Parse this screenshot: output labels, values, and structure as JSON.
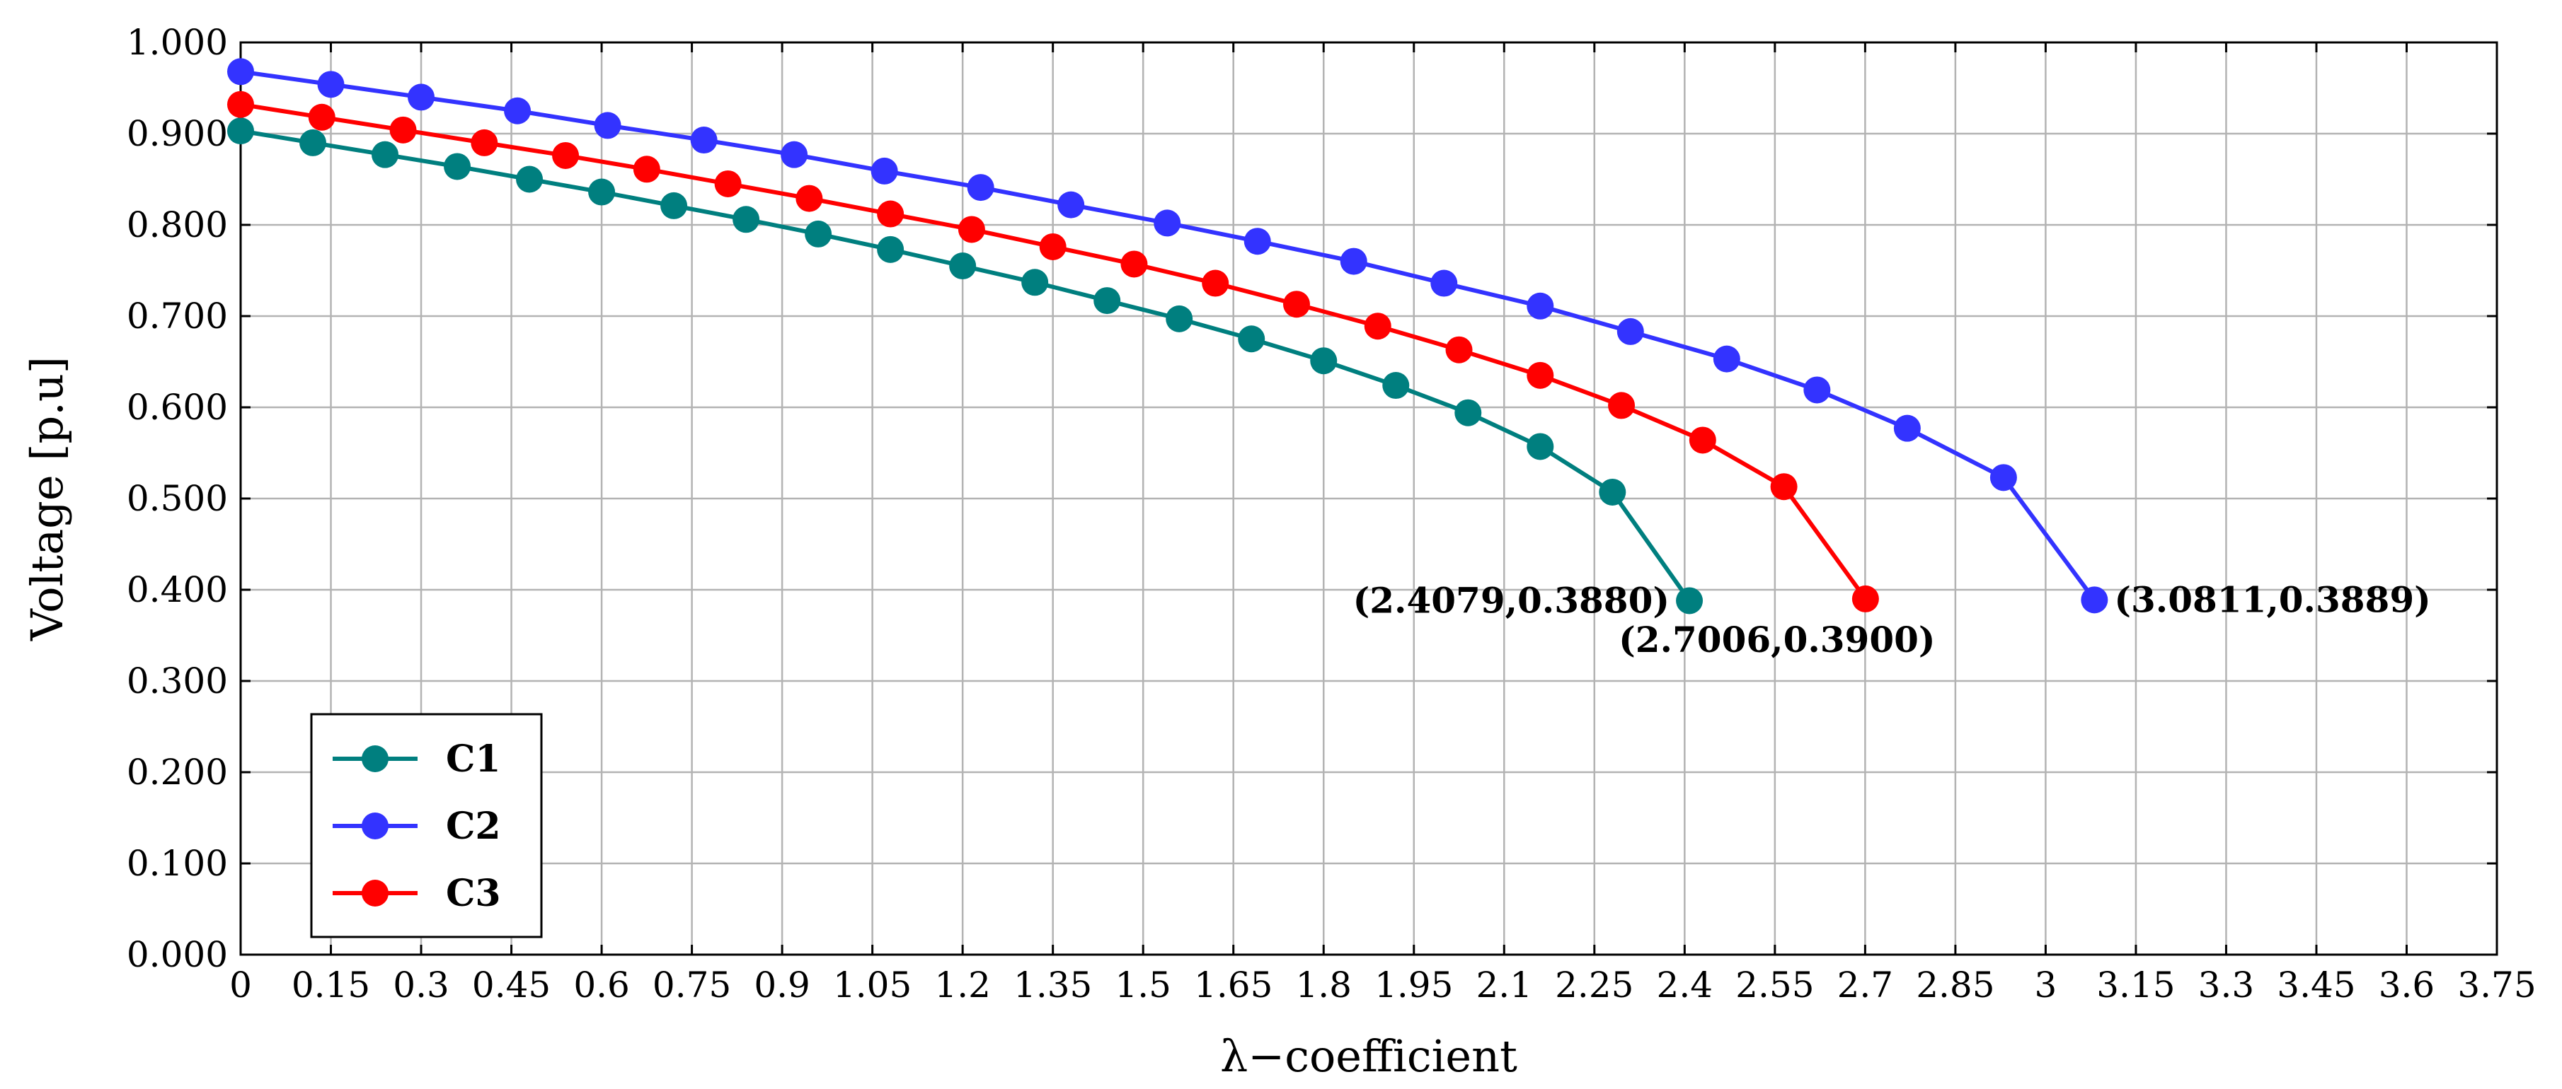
{
  "chart_data": {
    "type": "line",
    "title": "",
    "xlabel": "λ−coefficient",
    "ylabel": "Voltage [p.u]",
    "xlim": [
      0,
      3.75
    ],
    "ylim": [
      0,
      1.0
    ],
    "grid": true,
    "legend_position": "bottom-left",
    "x_ticks": [
      "0",
      "0.15",
      "0.3",
      "0.45",
      "0.6",
      "0.75",
      "0.9",
      "1.05",
      "1.2",
      "1.35",
      "1.5",
      "1.65",
      "1.8",
      "1.95",
      "2.1",
      "2.25",
      "2.4",
      "2.55",
      "2.7",
      "2.85",
      "3",
      "3.15",
      "3.3",
      "3.45",
      "3.6",
      "3.75"
    ],
    "y_ticks": [
      "0.000",
      "0.100",
      "0.200",
      "0.300",
      "0.400",
      "0.500",
      "0.600",
      "0.700",
      "0.800",
      "0.900",
      "1.000"
    ],
    "series": [
      {
        "name": "C1",
        "color": "#007f7f",
        "x": [
          0,
          0.12,
          0.24,
          0.36,
          0.48,
          0.6,
          0.72,
          0.84,
          0.96,
          1.08,
          1.2,
          1.32,
          1.44,
          1.56,
          1.68,
          1.8,
          1.92,
          2.04,
          2.16,
          2.28,
          2.4079
        ],
        "y": [
          0.903,
          0.89,
          0.877,
          0.864,
          0.85,
          0.836,
          0.821,
          0.806,
          0.79,
          0.773,
          0.755,
          0.737,
          0.717,
          0.697,
          0.675,
          0.651,
          0.624,
          0.594,
          0.557,
          0.507,
          0.388
        ]
      },
      {
        "name": "C2",
        "color": "#3333ff",
        "x": [
          0,
          0.15,
          0.3,
          0.46,
          0.61,
          0.77,
          0.92,
          1.07,
          1.23,
          1.38,
          1.54,
          1.69,
          1.85,
          2.0,
          2.16,
          2.31,
          2.47,
          2.62,
          2.77,
          2.93,
          3.0811
        ],
        "y": [
          0.968,
          0.954,
          0.94,
          0.925,
          0.909,
          0.893,
          0.877,
          0.859,
          0.841,
          0.822,
          0.802,
          0.782,
          0.76,
          0.736,
          0.711,
          0.683,
          0.653,
          0.619,
          0.577,
          0.523,
          0.3889
        ]
      },
      {
        "name": "C3",
        "color": "#ff0000",
        "x": [
          0,
          0.135,
          0.27,
          0.405,
          0.54,
          0.675,
          0.81,
          0.945,
          1.08,
          1.215,
          1.35,
          1.485,
          1.62,
          1.755,
          1.89,
          2.025,
          2.16,
          2.295,
          2.43,
          2.565,
          2.7006
        ],
        "y": [
          0.932,
          0.918,
          0.904,
          0.89,
          0.876,
          0.861,
          0.845,
          0.829,
          0.812,
          0.795,
          0.776,
          0.757,
          0.736,
          0.713,
          0.689,
          0.663,
          0.635,
          0.602,
          0.564,
          0.513,
          0.39
        ]
      }
    ],
    "annotations": [
      {
        "text": "(2.4079,0.3880)",
        "series": "C1",
        "anchor": "left"
      },
      {
        "text": "(2.7006,0.3900)",
        "series": "C3",
        "anchor": "below"
      },
      {
        "text": "(3.0811,0.3889)",
        "series": "C2",
        "anchor": "right"
      }
    ]
  }
}
